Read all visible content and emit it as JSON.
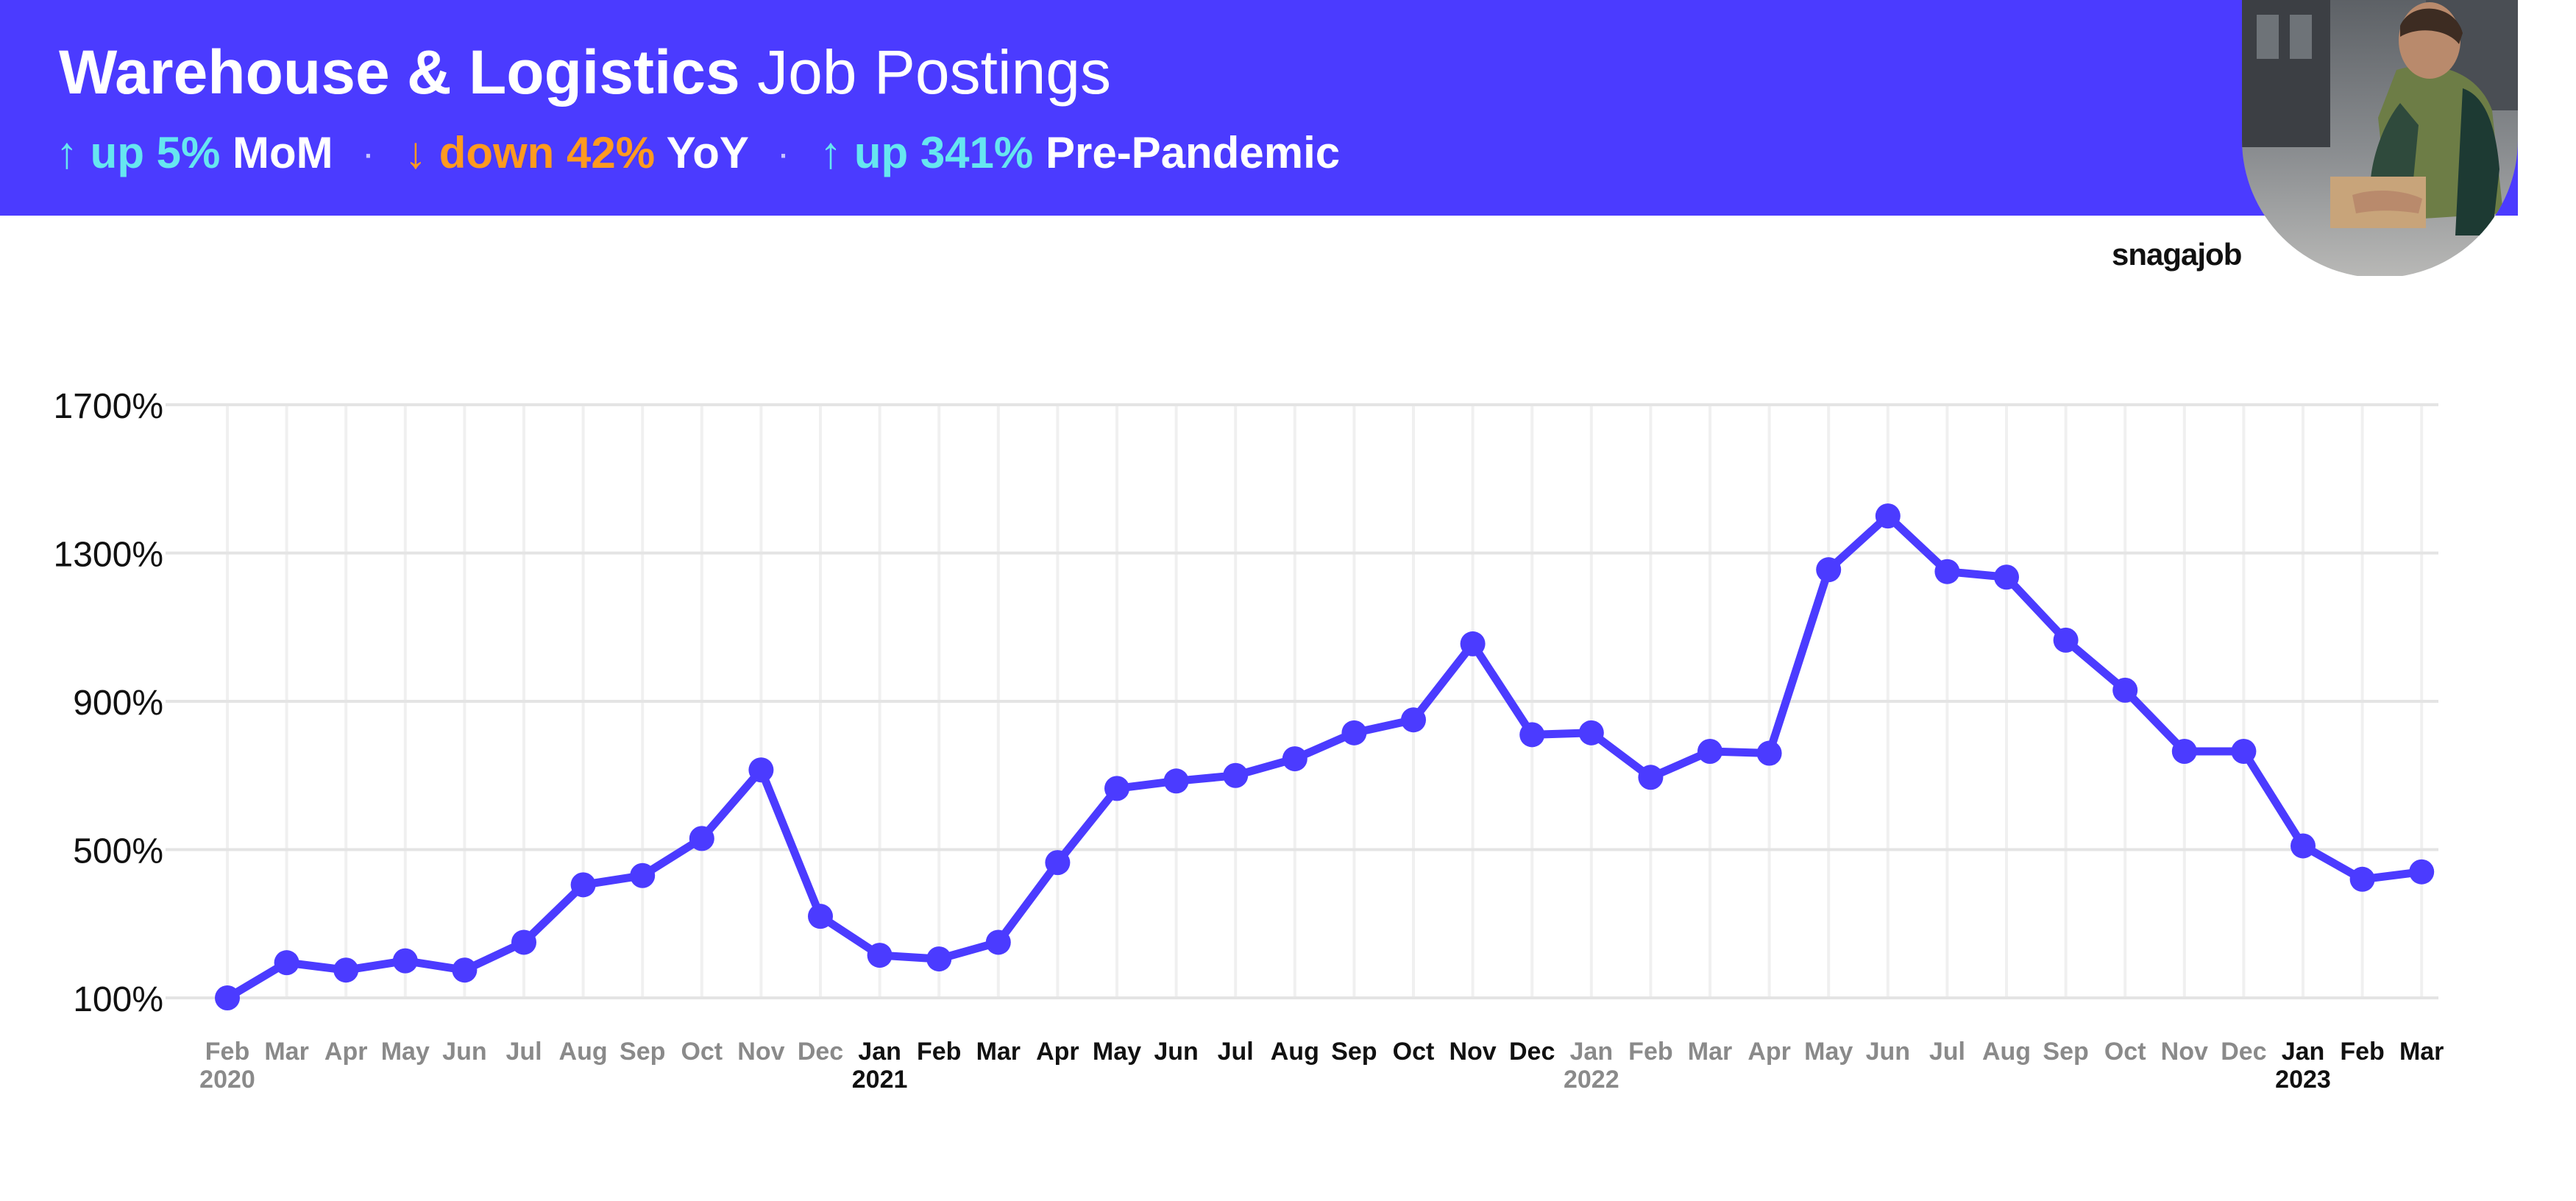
{
  "header": {
    "title_bold": "Warehouse & Logistics",
    "title_light": "Job Postings",
    "stats": [
      {
        "arrow": "↑",
        "change": "up 5%",
        "label": "MoM",
        "color": "#66e6f0"
      },
      {
        "arrow": "↓",
        "change": "down 42%",
        "label": "YoY",
        "color": "#ff9a1f"
      },
      {
        "arrow": "↑",
        "change": "up 341%",
        "label": "Pre-Pandemic",
        "color": "#66e6f0"
      }
    ],
    "separator": "·"
  },
  "logo": "snagajob",
  "colors": {
    "banner": "#4b3bff",
    "line": "#4b3bff"
  },
  "chart_data": {
    "type": "line",
    "title": "",
    "xlabel": "",
    "ylabel": "",
    "ylim": [
      100,
      1700
    ],
    "yticks": [
      100,
      500,
      900,
      1300,
      1700
    ],
    "ytick_labels": [
      "100%",
      "500%",
      "900%",
      "1300%",
      "1700%"
    ],
    "grid": true,
    "x_months": [
      "Feb",
      "Mar",
      "Apr",
      "May",
      "Jun",
      "Jul",
      "Aug",
      "Sep",
      "Oct",
      "Nov",
      "Dec",
      "Jan",
      "Feb",
      "Mar",
      "Apr",
      "May",
      "Jun",
      "Jul",
      "Aug",
      "Sep",
      "Oct",
      "Nov",
      "Dec",
      "Jan",
      "Feb",
      "Mar",
      "Apr",
      "May",
      "Jun",
      "Jul",
      "Aug",
      "Sep",
      "Oct",
      "Nov",
      "Dec",
      "Jan",
      "Feb",
      "Mar"
    ],
    "x_years": [
      {
        "index": 0,
        "label": "2020"
      },
      {
        "index": 11,
        "label": "2021"
      },
      {
        "index": 23,
        "label": "2022"
      },
      {
        "index": 35,
        "label": "2023"
      }
    ],
    "series": [
      {
        "values": [
          100,
          195,
          175,
          200,
          175,
          250,
          405,
          430,
          530,
          715,
          320,
          215,
          205,
          250,
          465,
          665,
          685,
          700,
          745,
          815,
          850,
          1055,
          810,
          815,
          695,
          765,
          760,
          1255,
          1400,
          1250,
          1235,
          1065,
          930,
          765,
          765,
          510,
          420,
          440
        ]
      }
    ]
  }
}
